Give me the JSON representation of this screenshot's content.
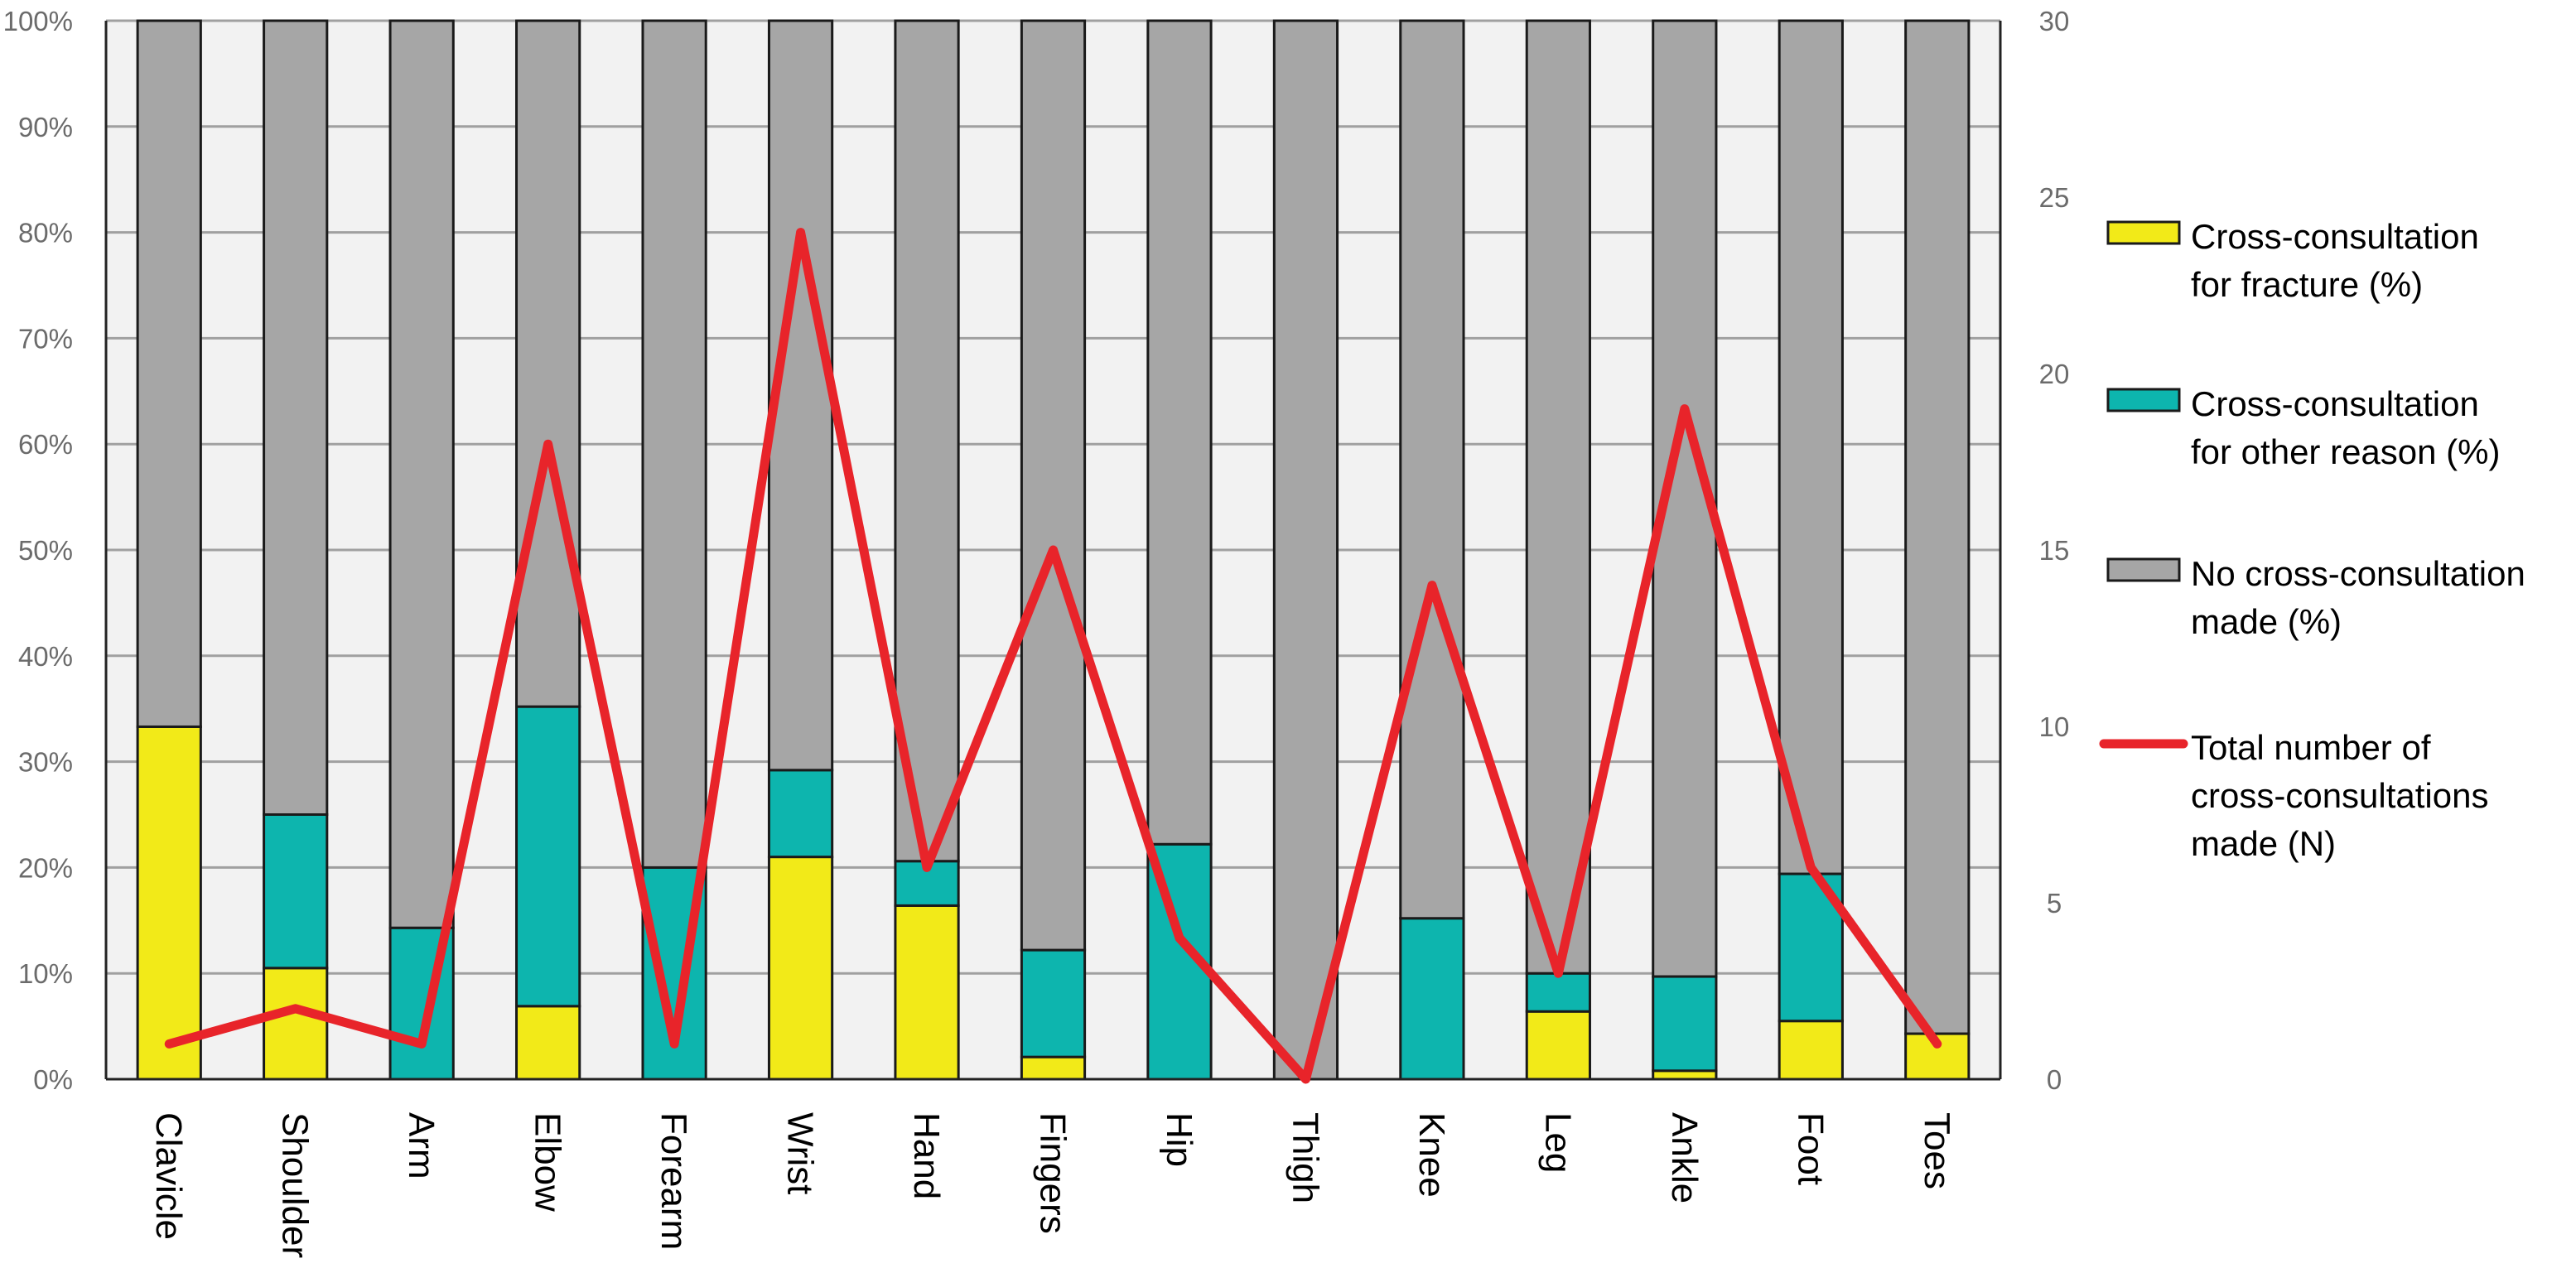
{
  "chart_data": {
    "type": "bar",
    "stacked": true,
    "categories": [
      "Clavicle",
      "Shoulder",
      "Arm",
      "Elbow",
      "Forearm",
      "Wrist",
      "Hand",
      "Fingers",
      "Hip",
      "Thigh",
      "Knee",
      "Leg",
      "Ankle",
      "Foot",
      "Toes"
    ],
    "series": [
      {
        "name": "Cross-consultation for fracture (%)",
        "color": "#f2ea18",
        "values": [
          33.3,
          10.5,
          0,
          6.9,
          0,
          21.0,
          16.4,
          2.1,
          0,
          0,
          0,
          6.4,
          0.8,
          5.5,
          4.3
        ]
      },
      {
        "name": "Cross-consultation for other reason (%)",
        "color": "#0db5ae",
        "values": [
          0,
          14.5,
          14.3,
          28.3,
          20.0,
          8.2,
          4.2,
          10.1,
          22.2,
          0,
          15.2,
          3.6,
          8.9,
          13.9,
          0
        ]
      },
      {
        "name": "No cross-consultation made (%)",
        "color": "#a6a6a6",
        "values": [
          66.7,
          75.0,
          85.7,
          64.8,
          80.0,
          70.8,
          79.4,
          87.8,
          77.8,
          100,
          84.8,
          90.0,
          90.3,
          80.6,
          95.7
        ]
      }
    ],
    "line_series": {
      "name": "Total number of cross-consultations made (N)",
      "color": "#e8242a",
      "axis": "right",
      "values": [
        1,
        2,
        1,
        18,
        1,
        24,
        6,
        15,
        4,
        0,
        14,
        3,
        19,
        6,
        1
      ]
    },
    "y_left": {
      "ylim": [
        0,
        100
      ],
      "ticks": [
        "0%",
        "10%",
        "20%",
        "30%",
        "40%",
        "50%",
        "60%",
        "70%",
        "80%",
        "90%",
        "100%"
      ]
    },
    "y_right": {
      "ylim": [
        0,
        30
      ],
      "ticks": [
        "0",
        "5",
        "10",
        "15",
        "20",
        "25",
        "30"
      ]
    },
    "legend": {
      "placement": "right",
      "entries": [
        {
          "lines": [
            "Cross-consultation",
            "for fracture (%)"
          ],
          "color": "#f2ea18",
          "kind": "box"
        },
        {
          "lines": [
            "Cross-consultation",
            "for other reason (%)"
          ],
          "color": "#0db5ae",
          "kind": "box"
        },
        {
          "lines": [
            "No cross-consultation",
            "made (%)"
          ],
          "color": "#a6a6a6",
          "kind": "box"
        },
        {
          "lines": [
            "Total number of",
            "cross-consultations",
            "made (N)"
          ],
          "color": "#e8242a",
          "kind": "line"
        }
      ]
    },
    "grid": true,
    "plot_background": "#f2f2f2",
    "title": "",
    "xlabel": "",
    "ylabel": ""
  }
}
